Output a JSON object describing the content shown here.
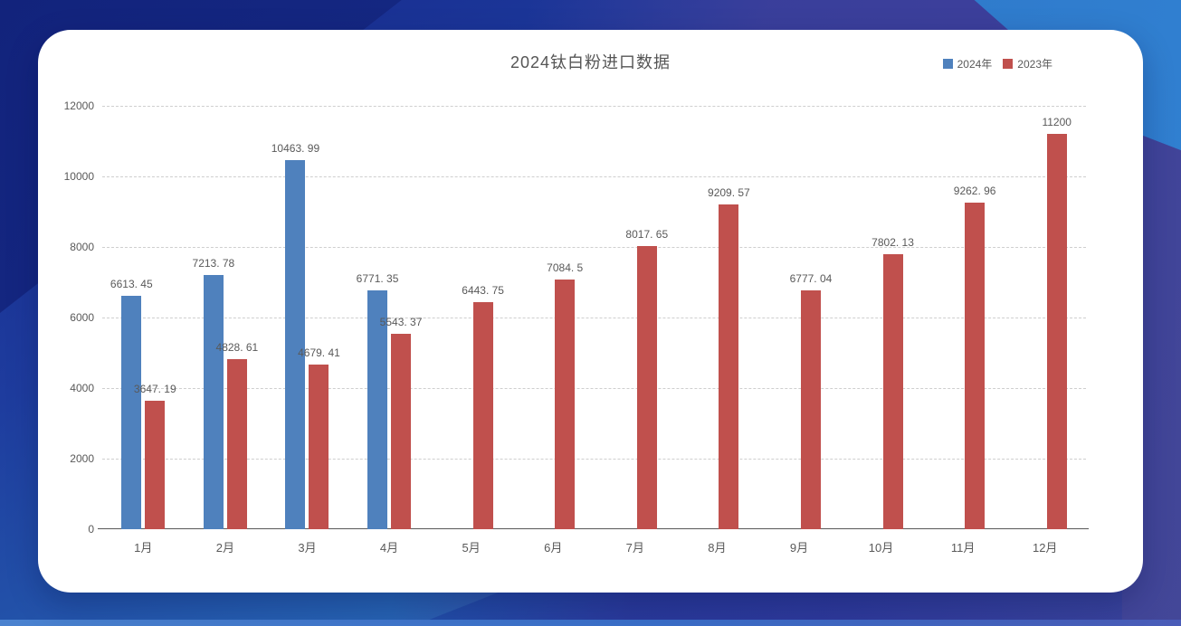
{
  "chart": {
    "title": "2024钛白粉进口数据"
  },
  "chart_data": {
    "type": "bar",
    "title": "2024钛白粉进口数据",
    "categories": [
      "1月",
      "2月",
      "3月",
      "4月",
      "5月",
      "6月",
      "7月",
      "8月",
      "9月",
      "10月",
      "11月",
      "12月"
    ],
    "series": [
      {
        "name": "2024年",
        "color": "#4f81bd",
        "values": [
          6613.45,
          7213.78,
          10463.99,
          6771.35,
          null,
          null,
          null,
          null,
          null,
          null,
          null,
          null
        ],
        "labels": [
          "6613. 45",
          "7213. 78",
          "10463. 99",
          "6771. 35",
          null,
          null,
          null,
          null,
          null,
          null,
          null,
          null
        ]
      },
      {
        "name": "2023年",
        "color": "#c0504d",
        "values": [
          3647.19,
          4828.61,
          4679.41,
          5543.37,
          6443.75,
          7084.5,
          8017.65,
          9209.57,
          6777.04,
          7802.13,
          9262.96,
          11200
        ],
        "labels": [
          "3647. 19",
          "4828. 61",
          "4679. 41",
          "5543. 37",
          "6443. 75",
          "7084. 5",
          "8017. 65",
          "9209. 57",
          "6777. 04",
          "7802. 13",
          "9262. 96",
          "11200"
        ]
      }
    ],
    "ylim": [
      0,
      12000
    ],
    "y_ticks": [
      0,
      2000,
      4000,
      6000,
      8000,
      10000,
      12000
    ],
    "xlabel": "",
    "ylabel": "",
    "grid": true,
    "gridline_style": "dashed",
    "legend_position": "top-right",
    "label_color": "#595959",
    "axis_color": "#595959"
  },
  "background": {
    "base_top": "#16298c",
    "base_bottom": "#2e73c3",
    "purple_right": "#3c3f9b",
    "light_blue_corner": "#2d74c5",
    "bottom_strip": "#3a6fc9"
  }
}
